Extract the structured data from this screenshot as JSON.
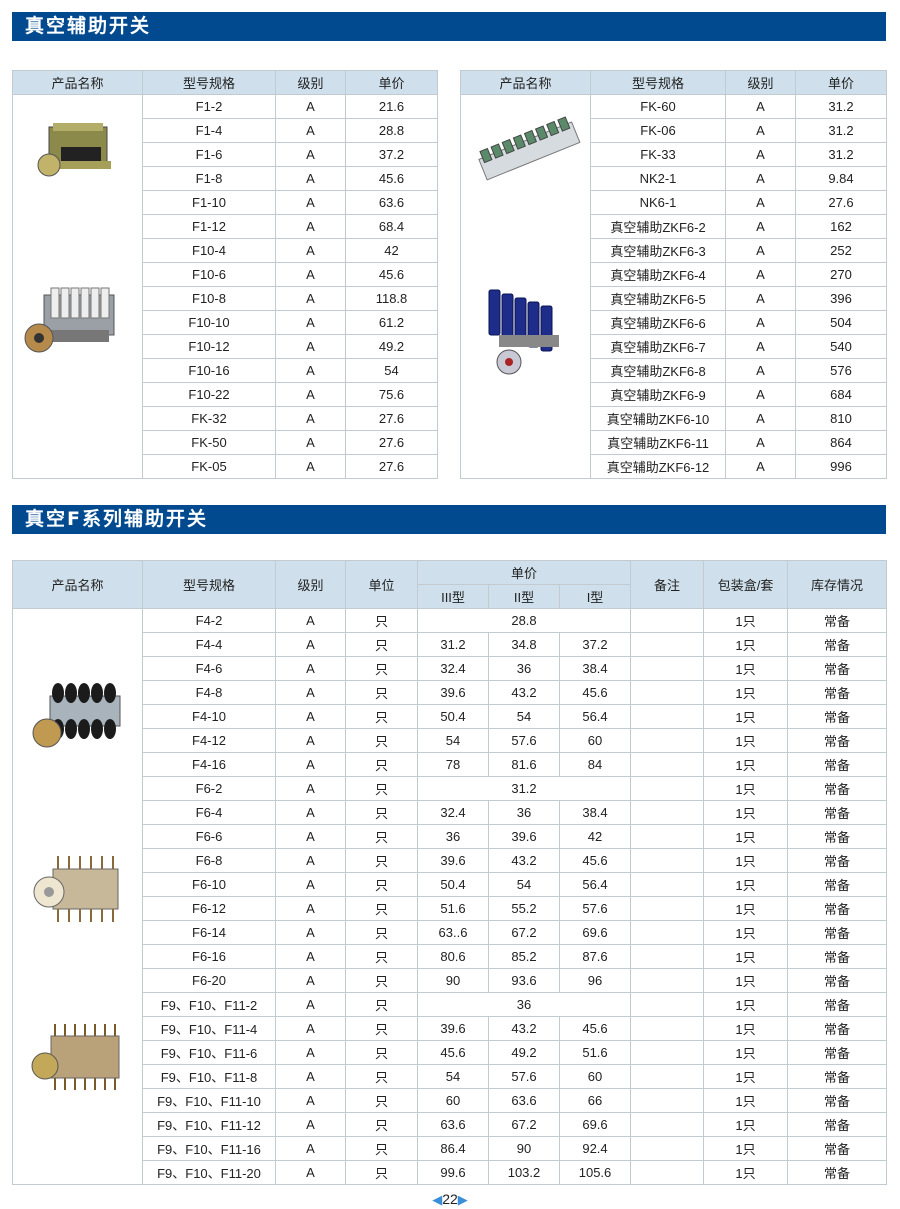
{
  "section1": {
    "title": "真空辅助开关",
    "headers": [
      "产品名称",
      "型号规格",
      "级别",
      "单价"
    ],
    "left_rows": [
      [
        "F1-2",
        "A",
        "21.6"
      ],
      [
        "F1-4",
        "A",
        "28.8"
      ],
      [
        "F1-6",
        "A",
        "37.2"
      ],
      [
        "F1-8",
        "A",
        "45.6"
      ],
      [
        "F1-10",
        "A",
        "63.6"
      ],
      [
        "F1-12",
        "A",
        "68.4"
      ],
      [
        "F10-4",
        "A",
        "42"
      ],
      [
        "F10-6",
        "A",
        "45.6"
      ],
      [
        "F10-8",
        "A",
        "118.8"
      ],
      [
        "F10-10",
        "A",
        "61.2"
      ],
      [
        "F10-12",
        "A",
        "49.2"
      ],
      [
        "F10-16",
        "A",
        "54"
      ],
      [
        "F10-22",
        "A",
        "75.6"
      ],
      [
        "FK-32",
        "A",
        "27.6"
      ],
      [
        "FK-50",
        "A",
        "27.6"
      ],
      [
        "FK-05",
        "A",
        "27.6"
      ]
    ],
    "right_rows": [
      [
        "FK-60",
        "A",
        "31.2"
      ],
      [
        "FK-06",
        "A",
        "31.2"
      ],
      [
        "FK-33",
        "A",
        "31.2"
      ],
      [
        "NK2-1",
        "A",
        "9.84"
      ],
      [
        "NK6-1",
        "A",
        "27.6"
      ],
      [
        "真空辅助ZKF6-2",
        "A",
        "162"
      ],
      [
        "真空辅助ZKF6-3",
        "A",
        "252"
      ],
      [
        "真空辅助ZKF6-4",
        "A",
        "270"
      ],
      [
        "真空辅助ZKF6-5",
        "A",
        "396"
      ],
      [
        "真空辅助ZKF6-6",
        "A",
        "504"
      ],
      [
        "真空辅助ZKF6-7",
        "A",
        "540"
      ],
      [
        "真空辅助ZKF6-8",
        "A",
        "576"
      ],
      [
        "真空辅助ZKF6-9",
        "A",
        "684"
      ],
      [
        "真空辅助ZKF6-10",
        "A",
        "810"
      ],
      [
        "真空辅助ZKF6-11",
        "A",
        "864"
      ],
      [
        "真空辅助ZKF6-12",
        "A",
        "996"
      ]
    ]
  },
  "section2": {
    "title": "真空F系列辅助开关",
    "headers": {
      "name": "产品名称",
      "model": "型号规格",
      "grade": "级别",
      "unit": "单位",
      "price": "单价",
      "types": [
        "III型",
        "II型",
        "I型"
      ],
      "remark": "备注",
      "pack": "包装盒/套",
      "stock": "库存情况"
    },
    "rows": [
      {
        "model": "F4-2",
        "grade": "A",
        "unit": "只",
        "price": [
          "28.8"
        ],
        "pack": "1只",
        "stock": "常备"
      },
      {
        "model": "F4-4",
        "grade": "A",
        "unit": "只",
        "price": [
          "31.2",
          "34.8",
          "37.2"
        ],
        "pack": "1只",
        "stock": "常备"
      },
      {
        "model": "F4-6",
        "grade": "A",
        "unit": "只",
        "price": [
          "32.4",
          "36",
          "38.4"
        ],
        "pack": "1只",
        "stock": "常备"
      },
      {
        "model": "F4-8",
        "grade": "A",
        "unit": "只",
        "price": [
          "39.6",
          "43.2",
          "45.6"
        ],
        "pack": "1只",
        "stock": "常备"
      },
      {
        "model": "F4-10",
        "grade": "A",
        "unit": "只",
        "price": [
          "50.4",
          "54",
          "56.4"
        ],
        "pack": "1只",
        "stock": "常备"
      },
      {
        "model": "F4-12",
        "grade": "A",
        "unit": "只",
        "price": [
          "54",
          "57.6",
          "60"
        ],
        "pack": "1只",
        "stock": "常备"
      },
      {
        "model": "F4-16",
        "grade": "A",
        "unit": "只",
        "price": [
          "78",
          "81.6",
          "84"
        ],
        "pack": "1只",
        "stock": "常备"
      },
      {
        "model": "F6-2",
        "grade": "A",
        "unit": "只",
        "price": [
          "31.2"
        ],
        "pack": "1只",
        "stock": "常备"
      },
      {
        "model": "F6-4",
        "grade": "A",
        "unit": "只",
        "price": [
          "32.4",
          "36",
          "38.4"
        ],
        "pack": "1只",
        "stock": "常备"
      },
      {
        "model": "F6-6",
        "grade": "A",
        "unit": "只",
        "price": [
          "36",
          "39.6",
          "42"
        ],
        "pack": "1只",
        "stock": "常备"
      },
      {
        "model": "F6-8",
        "grade": "A",
        "unit": "只",
        "price": [
          "39.6",
          "43.2",
          "45.6"
        ],
        "pack": "1只",
        "stock": "常备"
      },
      {
        "model": "F6-10",
        "grade": "A",
        "unit": "只",
        "price": [
          "50.4",
          "54",
          "56.4"
        ],
        "pack": "1只",
        "stock": "常备"
      },
      {
        "model": "F6-12",
        "grade": "A",
        "unit": "只",
        "price": [
          "51.6",
          "55.2",
          "57.6"
        ],
        "pack": "1只",
        "stock": "常备"
      },
      {
        "model": "F6-14",
        "grade": "A",
        "unit": "只",
        "price": [
          "63..6",
          "67.2",
          "69.6"
        ],
        "pack": "1只",
        "stock": "常备"
      },
      {
        "model": "F6-16",
        "grade": "A",
        "unit": "只",
        "price": [
          "80.6",
          "85.2",
          "87.6"
        ],
        "pack": "1只",
        "stock": "常备"
      },
      {
        "model": "F6-20",
        "grade": "A",
        "unit": "只",
        "price": [
          "90",
          "93.6",
          "96"
        ],
        "pack": "1只",
        "stock": "常备"
      },
      {
        "model": "F9、F10、F11-2",
        "grade": "A",
        "unit": "只",
        "price": [
          "36"
        ],
        "pack": "1只",
        "stock": "常备"
      },
      {
        "model": "F9、F10、F11-4",
        "grade": "A",
        "unit": "只",
        "price": [
          "39.6",
          "43.2",
          "45.6"
        ],
        "pack": "1只",
        "stock": "常备"
      },
      {
        "model": "F9、F10、F11-6",
        "grade": "A",
        "unit": "只",
        "price": [
          "45.6",
          "49.2",
          "51.6"
        ],
        "pack": "1只",
        "stock": "常备"
      },
      {
        "model": "F9、F10、F11-8",
        "grade": "A",
        "unit": "只",
        "price": [
          "54",
          "57.6",
          "60"
        ],
        "pack": "1只",
        "stock": "常备"
      },
      {
        "model": "F9、F10、F11-10",
        "grade": "A",
        "unit": "只",
        "price": [
          "60",
          "63.6",
          "66"
        ],
        "pack": "1只",
        "stock": "常备"
      },
      {
        "model": "F9、F10、F11-12",
        "grade": "A",
        "unit": "只",
        "price": [
          "63.6",
          "67.2",
          "69.6"
        ],
        "pack": "1只",
        "stock": "常备"
      },
      {
        "model": "F9、F10、F11-16",
        "grade": "A",
        "unit": "只",
        "price": [
          "86.4",
          "90",
          "92.4"
        ],
        "pack": "1只",
        "stock": "常备"
      },
      {
        "model": "F9、F10、F11-20",
        "grade": "A",
        "unit": "只",
        "price": [
          "99.6",
          "103.2",
          "105.6"
        ],
        "pack": "1只",
        "stock": "常备"
      }
    ]
  },
  "page_number": "22",
  "colors": {
    "title_bar": "#024a90",
    "header_bg": "#cfe0ec",
    "border": "#c3cbd2"
  }
}
